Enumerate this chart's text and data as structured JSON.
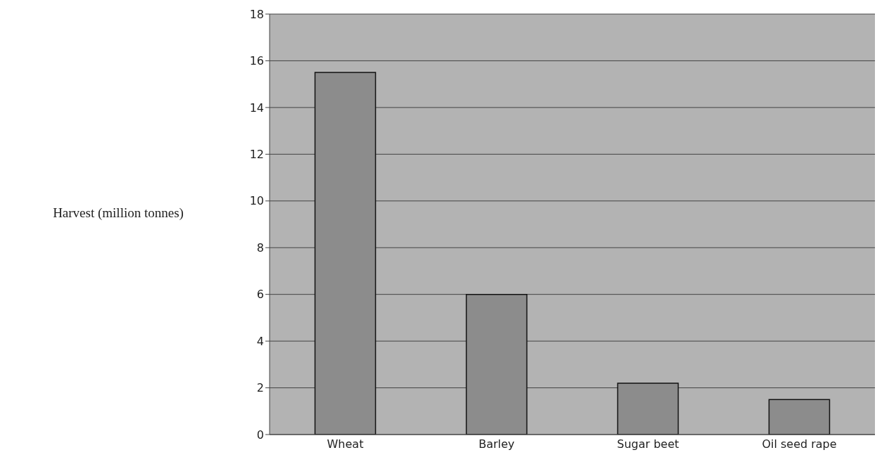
{
  "chart_data": {
    "type": "bar",
    "ylabel": "Harvest (million tonnes)",
    "categories": [
      "Wheat",
      "Barley",
      "Sugar beet",
      "Oil seed rape"
    ],
    "values": [
      15.5,
      6,
      2.2,
      1.5
    ],
    "color": "#8c8c8c",
    "ylim": [
      0,
      18
    ],
    "yticks": [
      0,
      2,
      4,
      6,
      8,
      10,
      12,
      14,
      16,
      18
    ],
    "grid": "y"
  }
}
